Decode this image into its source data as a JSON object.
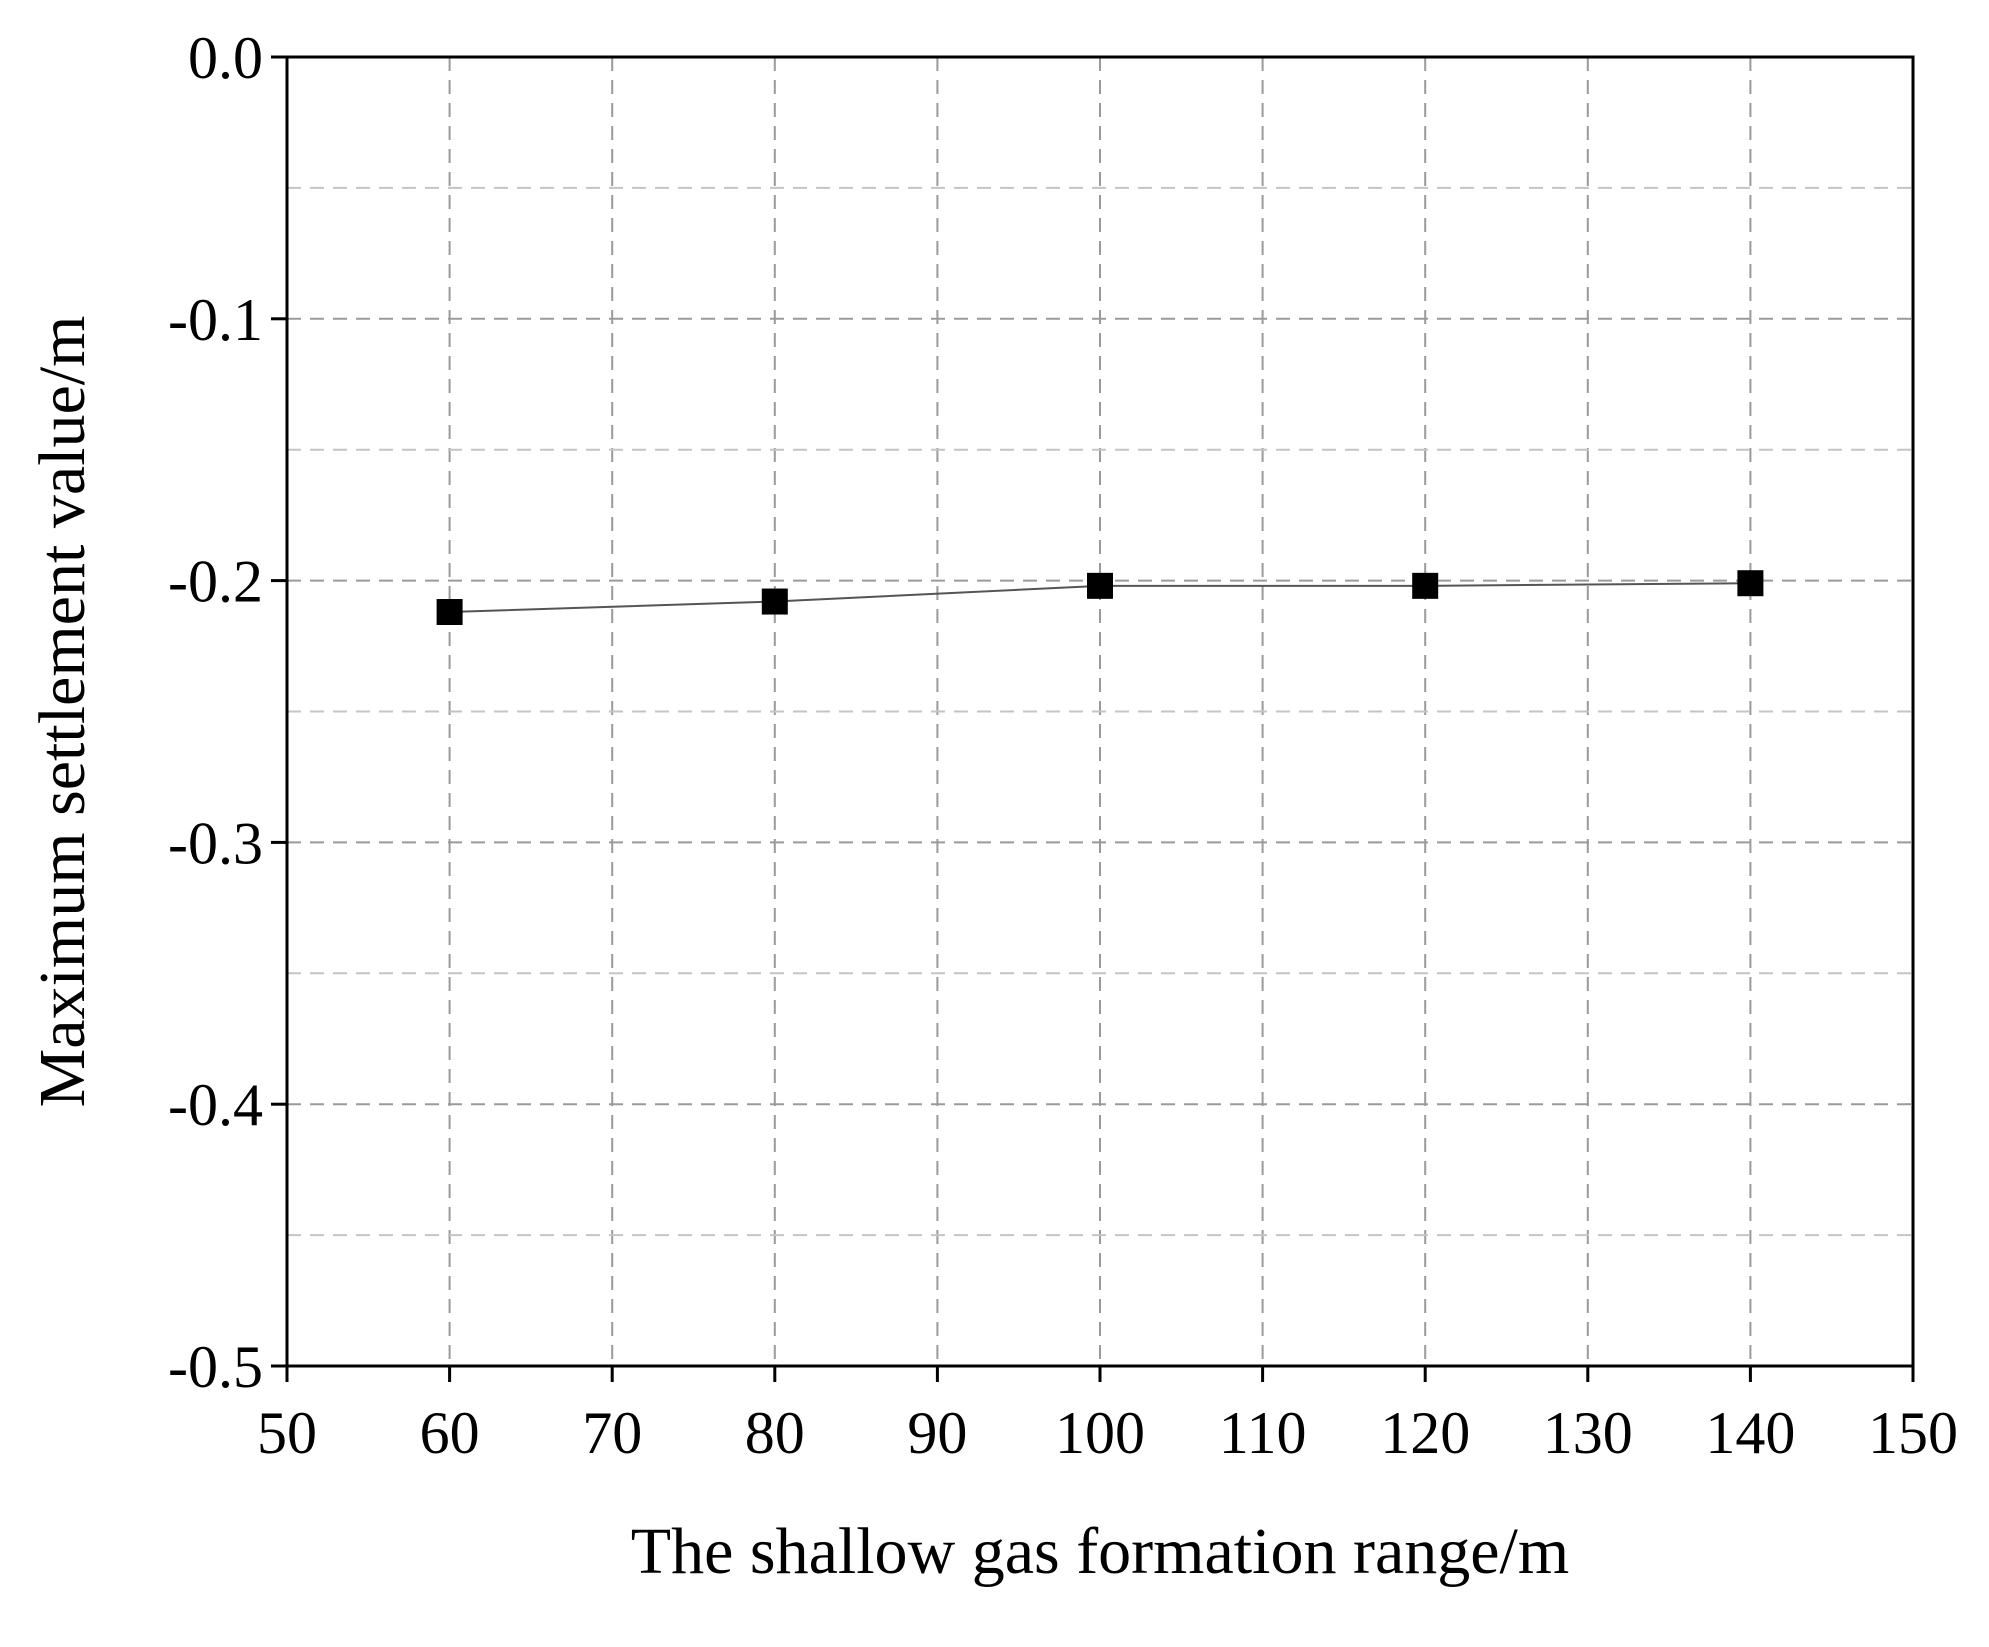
{
  "chart_data": {
    "type": "line",
    "title": "",
    "xlabel": "The shallow gas formation range/m",
    "ylabel": "Maximum settlement value/m",
    "xlim": [
      50,
      150
    ],
    "ylim": [
      -0.5,
      0.0
    ],
    "x_ticks": [
      50,
      60,
      70,
      80,
      90,
      100,
      110,
      120,
      130,
      140,
      150
    ],
    "x_tick_labels": [
      "50",
      "60",
      "70",
      "80",
      "90",
      "100",
      "110",
      "120",
      "130",
      "140",
      "150"
    ],
    "y_ticks": [
      0.0,
      -0.1,
      -0.2,
      -0.3,
      -0.4,
      -0.5
    ],
    "y_tick_labels": [
      "0.0",
      "-0.1",
      "-0.2",
      "-0.3",
      "-0.4",
      "-0.5"
    ],
    "y_minor_step": 0.05,
    "grid": true,
    "grid_style": "dashed",
    "legend": "none",
    "marker": "square",
    "colors": {
      "line": "#555555",
      "marker": "#000000",
      "axis": "#000000",
      "grid": "#9a9a9a",
      "minor_grid": "#c4c4c4"
    },
    "series": [
      {
        "x": [
          60,
          80,
          100,
          120,
          140
        ],
        "y": [
          -0.212,
          -0.208,
          -0.202,
          -0.202,
          -0.201
        ]
      }
    ]
  }
}
